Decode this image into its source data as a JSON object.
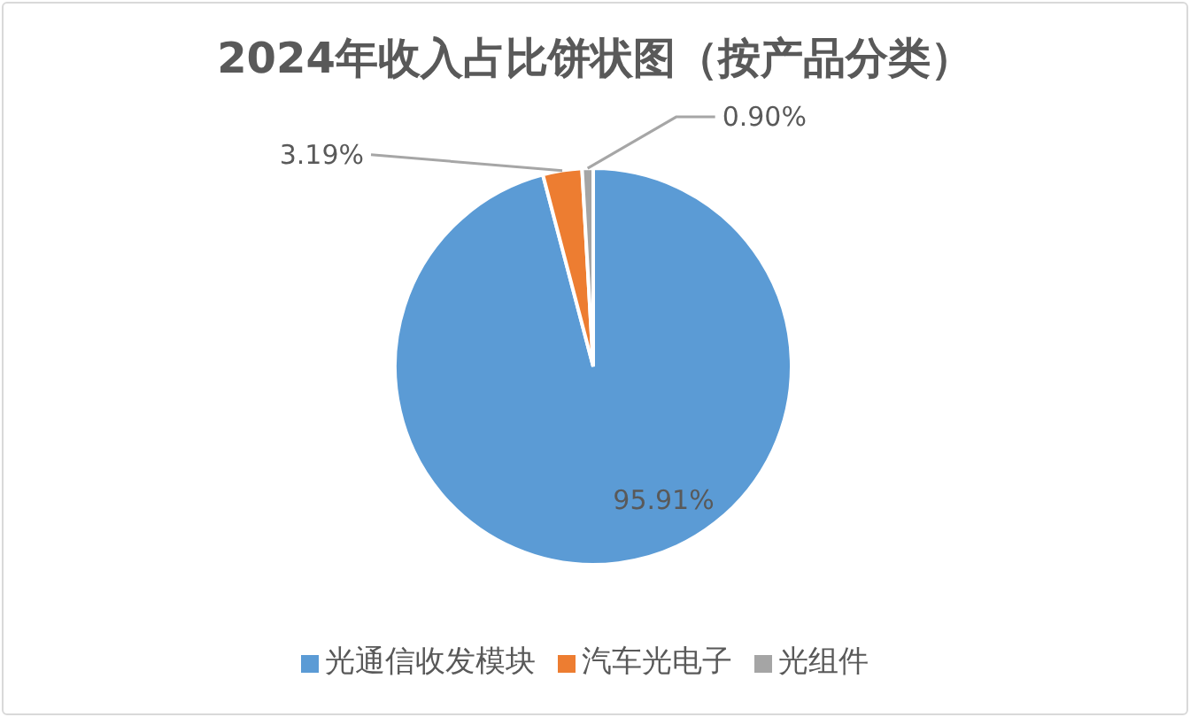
{
  "chart_data": {
    "type": "pie",
    "title": "2024年收入占比饼状图（按产品分类）",
    "categories": [
      "光通信收发模块",
      "汽车光电子",
      "光组件"
    ],
    "values": [
      95.91,
      3.19,
      0.9
    ],
    "colors": [
      "#5b9bd5",
      "#ed7d31",
      "#a5a5a5"
    ],
    "value_labels": [
      "95.91%",
      "3.19%",
      "0.90%"
    ],
    "legend": "bottom"
  }
}
